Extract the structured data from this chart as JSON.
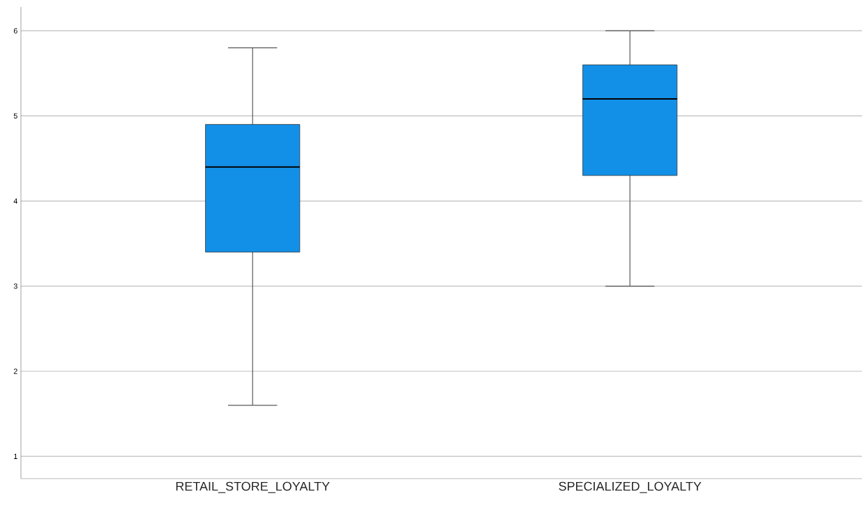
{
  "chart_data": {
    "type": "box",
    "categories": [
      "RETAIL_STORE_LOYALTY",
      "SPECIALIZED_LOYALTY"
    ],
    "boxes": [
      {
        "low": 1.6,
        "q1": 3.4,
        "median": 4.4,
        "q3": 4.9,
        "high": 5.8
      },
      {
        "low": 3.0,
        "q1": 4.3,
        "median": 5.2,
        "q3": 5.6,
        "high": 6.0
      }
    ],
    "color": "#1290e8",
    "ylim": [
      0.74,
      6.28
    ],
    "yticks": [
      1,
      2,
      3,
      4,
      5,
      6
    ],
    "grid": "y"
  }
}
